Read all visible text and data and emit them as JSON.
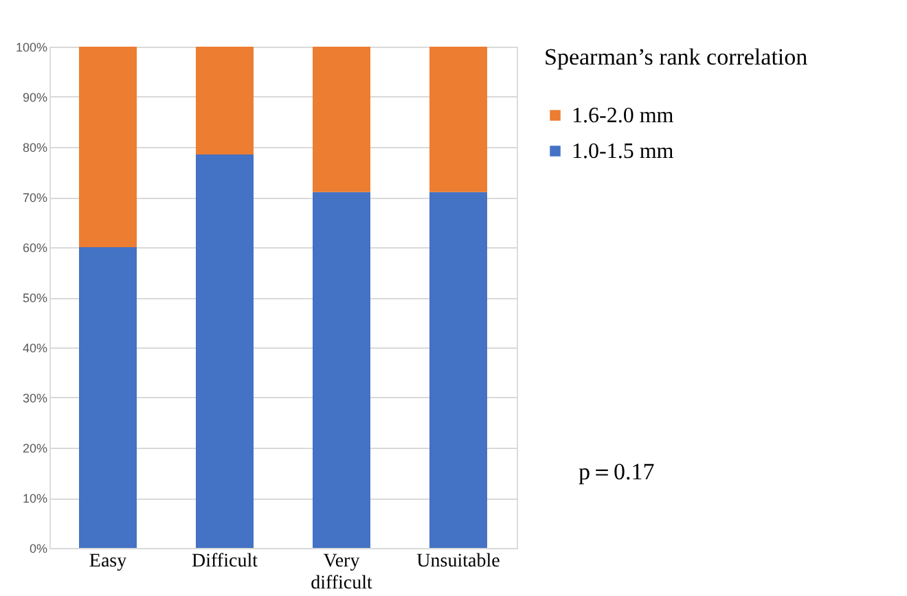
{
  "chart_data": {
    "type": "bar",
    "stacked": true,
    "categories": [
      "Easy",
      "Difficult",
      "Very difficult",
      "Unsuitable"
    ],
    "series": [
      {
        "name": "1.0-1.5 mm",
        "color": "#4472c4",
        "values": [
          60,
          78.5,
          71,
          71
        ]
      },
      {
        "name": "1.6-2.0 mm",
        "color": "#ed7d31",
        "values": [
          40,
          21.5,
          29,
          29
        ]
      }
    ],
    "ylim": [
      0,
      100
    ],
    "yticks": [
      {
        "value": 0,
        "label": "0%"
      },
      {
        "value": 10,
        "label": "10%"
      },
      {
        "value": 20,
        "label": "20%"
      },
      {
        "value": 30,
        "label": "30%"
      },
      {
        "value": 40,
        "label": "40%"
      },
      {
        "value": 50,
        "label": "50%"
      },
      {
        "value": 60,
        "label": "60%"
      },
      {
        "value": 70,
        "label": "70%"
      },
      {
        "value": 80,
        "label": "80%"
      },
      {
        "value": 90,
        "label": "90%"
      },
      {
        "value": 100,
        "label": "100%"
      }
    ],
    "grid": "y",
    "legend": "right",
    "legend_title": "Spearman’s rank correlation",
    "annotations": [
      "p＝0.17"
    ]
  }
}
